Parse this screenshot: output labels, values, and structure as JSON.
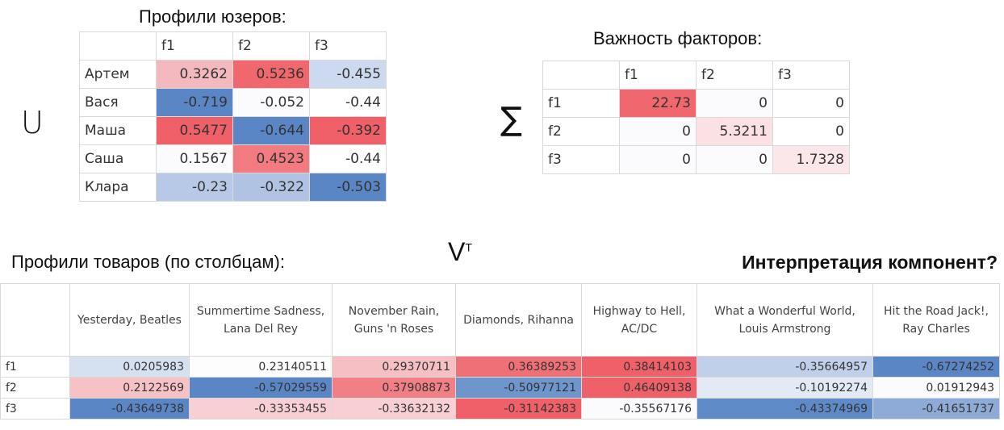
{
  "users_title": "Профили юзеров:",
  "u_symbol": "U",
  "users": {
    "columns": [
      "",
      "f1",
      "f2",
      "f3"
    ],
    "rows": [
      {
        "name": "Артем",
        "cells": [
          {
            "v": "0.3262",
            "bg": "#f4b9bf"
          },
          {
            "v": "0.5236",
            "bg": "#f0676e"
          },
          {
            "v": "-0.455",
            "bg": "#ccd9ee"
          }
        ]
      },
      {
        "name": "Вася",
        "cells": [
          {
            "v": "-0.719",
            "bg": "#5a86c6"
          },
          {
            "v": "-0.052",
            "bg": "#fbfbfd"
          },
          {
            "v": "-0.44",
            "bg": "#ffffff"
          }
        ]
      },
      {
        "name": "Маша",
        "cells": [
          {
            "v": "0.5477",
            "bg": "#ef6068"
          },
          {
            "v": "-0.644",
            "bg": "#5a86c6"
          },
          {
            "v": "-0.392",
            "bg": "#ef6068"
          }
        ]
      },
      {
        "name": "Саша",
        "cells": [
          {
            "v": "0.1567",
            "bg": "#fbfbfd"
          },
          {
            "v": "0.4523",
            "bg": "#f27b81"
          },
          {
            "v": "-0.44",
            "bg": "#ffffff"
          }
        ]
      },
      {
        "name": "Клара",
        "cells": [
          {
            "v": "-0.23",
            "bg": "#b7c9e6"
          },
          {
            "v": "-0.322",
            "bg": "#b0c3e3"
          },
          {
            "v": "-0.503",
            "bg": "#5a86c6"
          }
        ]
      }
    ]
  },
  "factors_title": "Важность факторов:",
  "sigma_symbol": "∑",
  "factors": {
    "columns": [
      "",
      "f1",
      "f2",
      "f3"
    ],
    "rows": [
      {
        "name": "f1",
        "cells": [
          {
            "v": "22.73",
            "bg": "#f0676e"
          },
          {
            "v": "0",
            "bg": "#fbfbfd"
          },
          {
            "v": "0",
            "bg": "#ffffff"
          }
        ]
      },
      {
        "name": "f2",
        "cells": [
          {
            "v": "0",
            "bg": "#fbfbfd"
          },
          {
            "v": "5.3211",
            "bg": "#fbe1e4"
          },
          {
            "v": "0",
            "bg": "#ffffff"
          }
        ]
      },
      {
        "name": "f3",
        "cells": [
          {
            "v": "0",
            "bg": "#fbfbfd"
          },
          {
            "v": "0",
            "bg": "#fbfbfd"
          },
          {
            "v": "1.7328",
            "bg": "#fbe7ea"
          }
        ]
      }
    ]
  },
  "items_title": "Профили товаров (по столбцам):",
  "v_symbol": "V",
  "v_superscript": "T",
  "interpretation_title": "Интерпретация компонент?",
  "items": {
    "columns": [
      "",
      "Yesterday, Beatles",
      "Summertime Sadness, Lana Del Rey",
      "November Rain, Guns 'n Roses",
      "Diamonds, Rihanna",
      "Highway to Hell, AC/DC",
      "What a Wonderful World, Louis Armstrong",
      "Hit the Road Jack!, Ray Charles"
    ],
    "rows": [
      {
        "name": "f1",
        "cells": [
          {
            "v": "0.0205983",
            "bg": "#d5e0f1"
          },
          {
            "v": "0.23140511",
            "bg": "#fdfdfe"
          },
          {
            "v": "0.29370711",
            "bg": "#f6bfc4"
          },
          {
            "v": "0.36389253",
            "bg": "#f07077"
          },
          {
            "v": "0.38414103",
            "bg": "#ef6068"
          },
          {
            "v": "-0.35664957",
            "bg": "#c1d0ea"
          },
          {
            "v": "-0.67274252",
            "bg": "#5a86c6"
          }
        ]
      },
      {
        "name": "f2",
        "cells": [
          {
            "v": "0.2122569",
            "bg": "#f7c2c6"
          },
          {
            "v": "-0.57029559",
            "bg": "#5a86c6"
          },
          {
            "v": "0.37908873",
            "bg": "#f17f85"
          },
          {
            "v": "-0.50977121",
            "bg": "#6f95cd"
          },
          {
            "v": "0.46409138",
            "bg": "#ef6068"
          },
          {
            "v": "-0.10192274",
            "bg": "#e3eaf5"
          },
          {
            "v": "0.01912943",
            "bg": "#fbfbfd"
          }
        ]
      },
      {
        "name": "f3",
        "cells": [
          {
            "v": "-0.43649738",
            "bg": "#5a86c6"
          },
          {
            "v": "-0.33353455",
            "bg": "#f8d0d4"
          },
          {
            "v": "-0.33632132",
            "bg": "#f8cfd3"
          },
          {
            "v": "-0.31142383",
            "bg": "#ef6068"
          },
          {
            "v": "-0.35567176",
            "bg": "#fbfbfd"
          },
          {
            "v": "-0.43374969",
            "bg": "#5f8ac8"
          },
          {
            "v": "-0.41651737",
            "bg": "#8eabd8"
          }
        ]
      }
    ]
  }
}
